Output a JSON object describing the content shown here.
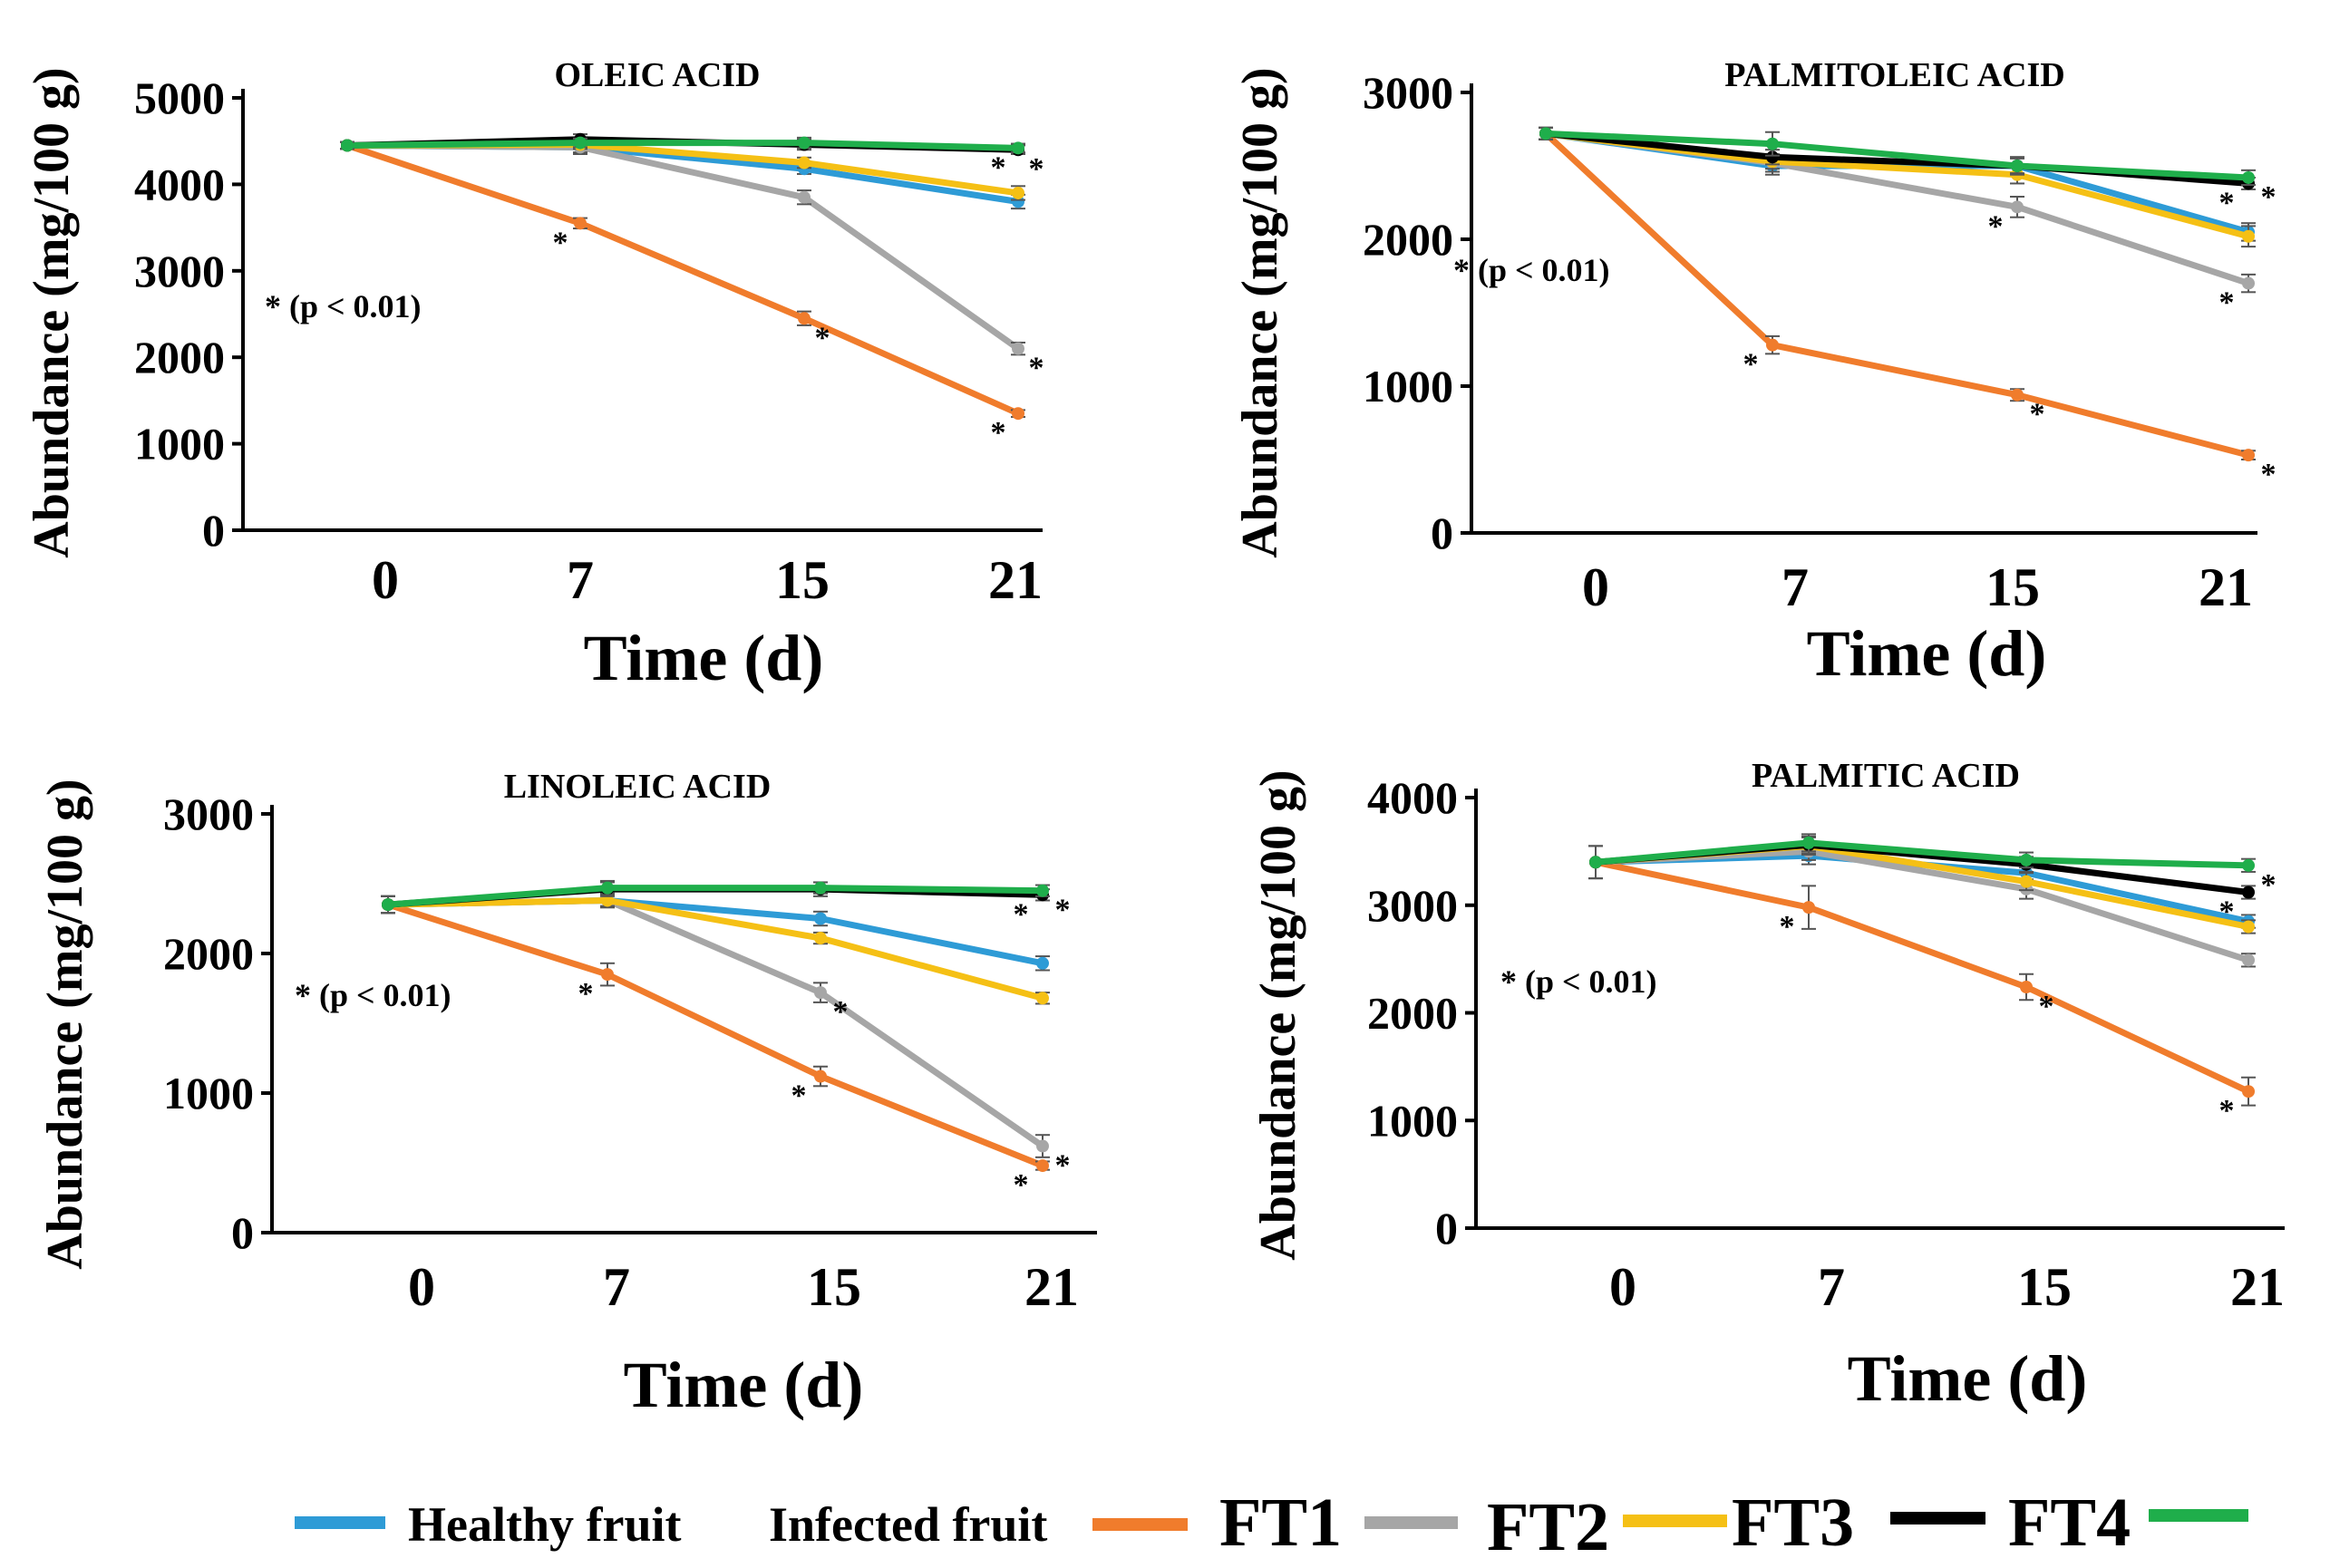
{
  "chart_data": [
    {
      "type": "line",
      "title": "OLEIC ACID",
      "xlabel": "Time (d)",
      "ylabel": "Abundance (mg/100 g)",
      "categories": [
        "0",
        "7",
        "15",
        "21"
      ],
      "ylim": [
        0,
        5000
      ],
      "yticks": [
        "5000",
        "4000",
        "3000",
        "2000",
        "1000",
        "0"
      ],
      "note": "* (p < 0.01)",
      "series": [
        {
          "name": "Healthy fruit",
          "values": [
            4450,
            4430,
            4180,
            3800
          ],
          "errors": [
            40,
            80,
            60,
            80
          ]
        },
        {
          "name": "Infected fruit",
          "values": [
            4450,
            3550,
            2450,
            1350
          ],
          "errors": [
            40,
            60,
            80,
            40
          ]
        },
        {
          "name": "FT1",
          "values": [
            4450,
            4430,
            3850,
            2100
          ],
          "errors": [
            40,
            60,
            80,
            70
          ]
        },
        {
          "name": "FT2",
          "values": [
            4450,
            4460,
            4250,
            3900
          ],
          "errors": [
            40,
            50,
            60,
            80
          ]
        },
        {
          "name": "FT3",
          "values": [
            4450,
            4520,
            4460,
            4400
          ],
          "errors": [
            40,
            60,
            60,
            50
          ]
        },
        {
          "name": "FT4",
          "values": [
            4450,
            4480,
            4480,
            4420
          ],
          "errors": [
            40,
            50,
            60,
            50
          ]
        }
      ],
      "significance": [
        {
          "x": "7",
          "value": 3550
        },
        {
          "x": "15",
          "value": 2450
        },
        {
          "x": "21",
          "value": 1350
        },
        {
          "x": "21",
          "value": 2100
        },
        {
          "x": "21",
          "value": 4420
        },
        {
          "x": "21",
          "value": 4400
        }
      ]
    },
    {
      "type": "line",
      "title": "PALMITOLEIC ACID",
      "xlabel": "Time (d)",
      "ylabel": "Abundance (mg/100 g)",
      "categories": [
        "0",
        "7",
        "15",
        "21"
      ],
      "ylim": [
        0,
        3000
      ],
      "yticks": [
        "3000",
        "2000",
        "1000",
        "0"
      ],
      "note": "* (p < 0.01)",
      "series": [
        {
          "name": "Healthy fruit",
          "values": [
            2720,
            2500,
            2500,
            2050
          ],
          "errors": [
            40,
            60,
            60,
            60
          ]
        },
        {
          "name": "Infected fruit",
          "values": [
            2720,
            1280,
            940,
            530
          ],
          "errors": [
            40,
            60,
            40,
            30
          ]
        },
        {
          "name": "FT1",
          "values": [
            2720,
            2520,
            2220,
            1700
          ],
          "errors": [
            40,
            60,
            70,
            60
          ]
        },
        {
          "name": "FT2",
          "values": [
            2720,
            2530,
            2440,
            2020
          ],
          "errors": [
            40,
            50,
            60,
            70
          ]
        },
        {
          "name": "FT3",
          "values": [
            2720,
            2560,
            2500,
            2380
          ],
          "errors": [
            40,
            50,
            50,
            40
          ]
        },
        {
          "name": "FT4",
          "values": [
            2720,
            2650,
            2500,
            2420
          ],
          "errors": [
            40,
            80,
            60,
            50
          ]
        }
      ],
      "significance": [
        {
          "x": "7",
          "value": 1280
        },
        {
          "x": "15",
          "value": 940
        },
        {
          "x": "15",
          "value": 2220
        },
        {
          "x": "21",
          "value": 530
        },
        {
          "x": "21",
          "value": 1700
        },
        {
          "x": "21",
          "value": 2420
        },
        {
          "x": "21",
          "value": 2380
        }
      ]
    },
    {
      "type": "line",
      "title": "LINOLEIC ACID",
      "xlabel": "Time (d)",
      "ylabel": "Abundance (mg/100 g)",
      "categories": [
        "0",
        "7",
        "15",
        "21"
      ],
      "ylim": [
        0,
        3000
      ],
      "yticks": [
        "3000",
        "2000",
        "1000",
        "0"
      ],
      "note": "* (p < 0.01)",
      "series": [
        {
          "name": "Healthy fruit",
          "values": [
            2350,
            2380,
            2250,
            1930
          ],
          "errors": [
            60,
            50,
            50,
            50
          ]
        },
        {
          "name": "Infected fruit",
          "values": [
            2350,
            1850,
            1120,
            480
          ],
          "errors": [
            60,
            80,
            70,
            30
          ]
        },
        {
          "name": "FT1",
          "values": [
            2350,
            2380,
            1720,
            620
          ],
          "errors": [
            60,
            50,
            70,
            80
          ]
        },
        {
          "name": "FT2",
          "values": [
            2350,
            2380,
            2110,
            1680
          ],
          "errors": [
            60,
            40,
            40,
            40
          ]
        },
        {
          "name": "FT3",
          "values": [
            2350,
            2460,
            2460,
            2420
          ],
          "errors": [
            60,
            50,
            50,
            40
          ]
        },
        {
          "name": "FT4",
          "values": [
            2350,
            2470,
            2470,
            2450
          ],
          "errors": [
            60,
            50,
            40,
            40
          ]
        }
      ],
      "significance": [
        {
          "x": "7",
          "value": 1850
        },
        {
          "x": "15",
          "value": 1720
        },
        {
          "x": "15",
          "value": 1120
        },
        {
          "x": "21",
          "value": 620
        },
        {
          "x": "21",
          "value": 480
        },
        {
          "x": "21",
          "value": 2450
        },
        {
          "x": "21",
          "value": 2420
        }
      ]
    },
    {
      "type": "line",
      "title": "PALMITIC ACID",
      "xlabel": "Time (d)",
      "ylabel": "Abundance (mg/100 g)",
      "categories": [
        "0",
        "7",
        "15",
        "21"
      ],
      "ylim": [
        0,
        4000
      ],
      "yticks": [
        "4000",
        "3000",
        "2000",
        "1000",
        "0"
      ],
      "note": "* (p < 0.01)",
      "series": [
        {
          "name": "Healthy fruit",
          "values": [
            3400,
            3460,
            3300,
            2850
          ],
          "errors": [
            150,
            80,
            80,
            60
          ]
        },
        {
          "name": "Infected fruit",
          "values": [
            3400,
            2980,
            2240,
            1270
          ],
          "errors": [
            150,
            200,
            120,
            130
          ]
        },
        {
          "name": "FT1",
          "values": [
            3400,
            3500,
            3150,
            2490
          ],
          "errors": [
            150,
            80,
            90,
            60
          ]
        },
        {
          "name": "FT2",
          "values": [
            3400,
            3550,
            3220,
            2800
          ],
          "errors": [
            150,
            80,
            80,
            60
          ]
        },
        {
          "name": "FT3",
          "values": [
            3400,
            3560,
            3380,
            3120
          ],
          "errors": [
            150,
            80,
            70,
            60
          ]
        },
        {
          "name": "FT4",
          "values": [
            3400,
            3580,
            3420,
            3370
          ],
          "errors": [
            150,
            80,
            70,
            60
          ]
        }
      ],
      "significance": [
        {
          "x": "7",
          "value": 2980
        },
        {
          "x": "15",
          "value": 2240
        },
        {
          "x": "21",
          "value": 1270
        },
        {
          "x": "21",
          "value": 3370
        },
        {
          "x": "21",
          "value": 3120
        }
      ]
    }
  ],
  "legend": {
    "items": [
      {
        "label": "Healthy fruit",
        "color": "#2e9bd6",
        "style": "small"
      },
      {
        "label": "Infected fruit",
        "color": "#f07c2c",
        "style": "small"
      },
      {
        "label": "FT1",
        "color": "#a6a6a6",
        "style": "big"
      },
      {
        "label": "FT2",
        "color": "#f5c015",
        "style": "big"
      },
      {
        "label": "FT3",
        "color": "#000000",
        "style": "big"
      },
      {
        "label": "FT4",
        "color": "#1fae4b",
        "style": "big"
      }
    ]
  },
  "colors": {
    "Healthy fruit": "#2e9bd6",
    "Infected fruit": "#f07c2c",
    "FT1": "#a6a6a6",
    "FT2": "#f5c015",
    "FT3": "#000000",
    "FT4": "#1fae4b",
    "axis": "#000000"
  }
}
